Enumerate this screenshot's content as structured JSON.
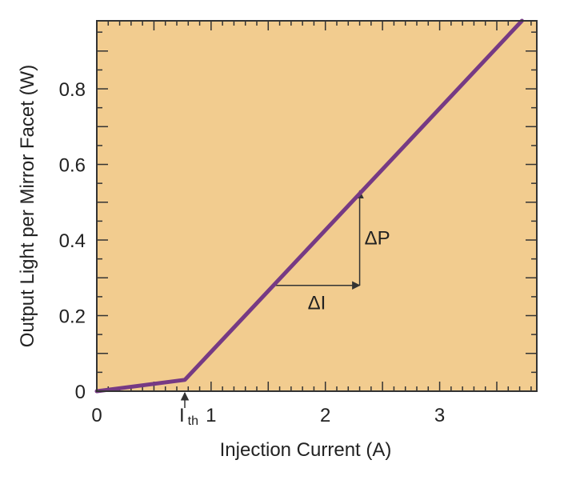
{
  "chart_data": {
    "type": "line",
    "xlabel": "Injection Current (A)",
    "ylabel": "Output Light per Mirror Facet (W)",
    "xlim": [
      0,
      3.85
    ],
    "ylim": [
      0,
      0.98
    ],
    "x_ticks": [
      {
        "value": 0,
        "label": "0"
      },
      {
        "value": 1,
        "label": "1"
      },
      {
        "value": 2,
        "label": "2"
      },
      {
        "value": 3,
        "label": "3"
      }
    ],
    "y_ticks": [
      {
        "value": 0,
        "label": "0"
      },
      {
        "value": 0.2,
        "label": "0.2"
      },
      {
        "value": 0.4,
        "label": "0.4"
      },
      {
        "value": 0.6,
        "label": "0.6"
      },
      {
        "value": 0.8,
        "label": "0.8"
      }
    ],
    "threshold": {
      "x": 0.77,
      "label_main": "I",
      "label_sub": "th"
    },
    "series": [
      {
        "x": [
          0,
          0.77,
          3.72
        ],
        "y": [
          0,
          0.03,
          0.98
        ]
      }
    ],
    "annotations": {
      "delta_i": {
        "label": "ΔI",
        "x_start": 1.55,
        "x_end": 2.3,
        "y": 0.28
      },
      "delta_p": {
        "label": "ΔP",
        "x": 2.3,
        "y_start": 0.28,
        "y_end": 0.53
      }
    },
    "colors": {
      "plot_bg": "#f2cc8f",
      "line": "#763a84",
      "axis": "#333333"
    },
    "grid": false,
    "legend": "none"
  }
}
